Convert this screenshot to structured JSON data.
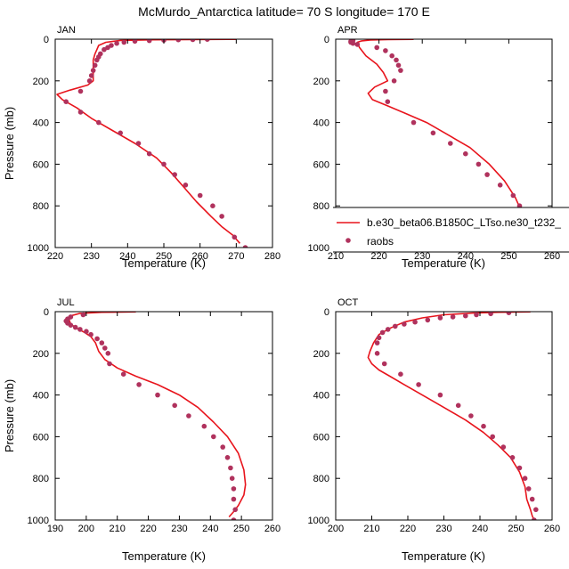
{
  "figure_title": "McMurdo_Antarctica  latitude= 70 S longitude= 170 E",
  "colors": {
    "model": "#e8141c",
    "obs": "#b0325d",
    "axis": "#000000"
  },
  "legend": {
    "entries": [
      {
        "label": "b.e30_beta06.B1850C_LTso.ne30_t232_",
        "style": "line"
      },
      {
        "label": "raobs",
        "style": "marker"
      }
    ]
  },
  "chart_data": [
    {
      "type": "line",
      "title": "JAN",
      "xlabel": "Temperature (K)",
      "ylabel": "Pressure (mb)",
      "xlim": [
        220,
        280
      ],
      "ylim": [
        1000,
        0
      ],
      "xticks": [
        220,
        230,
        240,
        250,
        260,
        270,
        280
      ],
      "yticks": [
        0,
        200,
        400,
        600,
        800,
        1000
      ],
      "series": [
        {
          "name": "b.e30_beta06.B1850C_LTso.ne30_t232_",
          "x": [
            270,
            247,
            238,
            234,
            232,
            231.5,
            231,
            230.5,
            230.5,
            229,
            224,
            220.5,
            222,
            226,
            230,
            236,
            242,
            248,
            252,
            255.5,
            259,
            263,
            266,
            269,
            271
          ],
          "y": [
            1,
            3,
            6,
            15,
            30,
            50,
            70,
            100,
            200,
            220,
            245,
            265,
            290,
            330,
            380,
            440,
            500,
            570,
            640,
            710,
            780,
            850,
            900,
            940,
            980
          ]
        },
        {
          "name": "raobs",
          "x": [
            262,
            258,
            254,
            250,
            246,
            242,
            239,
            237,
            235.5,
            234.5,
            233.5,
            232.5,
            232,
            231.5,
            231,
            230.5,
            230,
            229.5,
            227,
            223,
            227,
            232,
            238,
            243,
            246,
            250,
            253,
            256,
            260,
            263.5,
            266,
            269.5,
            272.5
          ],
          "y": [
            1,
            2,
            3,
            5,
            7,
            10,
            15,
            20,
            30,
            40,
            50,
            70,
            85,
            100,
            125,
            150,
            175,
            200,
            250,
            300,
            350,
            400,
            450,
            500,
            550,
            600,
            650,
            700,
            750,
            800,
            850,
            950,
            1000
          ]
        }
      ]
    },
    {
      "type": "line",
      "title": "APR",
      "xlabel": "Temperature (K)",
      "ylabel": "",
      "xlim": [
        210,
        260
      ],
      "ylim": [
        1000,
        0
      ],
      "xticks": [
        210,
        220,
        230,
        240,
        250,
        260
      ],
      "yticks": [
        0,
        200,
        400,
        600,
        800,
        1000
      ],
      "series": [
        {
          "name": "b.e30_beta06.B1850C_LTso.ne30_t232_",
          "x": [
            228,
            222,
            218,
            216,
            215,
            215.5,
            217,
            219.5,
            221,
            222,
            219,
            217.5,
            218.5,
            222,
            226,
            231,
            236,
            241,
            245.5,
            249,
            251.5,
            252.8,
            253.2,
            252.8,
            252,
            251.5
          ],
          "y": [
            1,
            2,
            4,
            8,
            15,
            40,
            80,
            120,
            160,
            200,
            230,
            260,
            290,
            320,
            355,
            400,
            460,
            520,
            600,
            680,
            760,
            820,
            860,
            900,
            950,
            985
          ]
        },
        {
          "name": "raobs",
          "x": [
            214,
            213.5,
            213.5,
            214,
            215,
            219.5,
            221.5,
            223,
            224,
            224.5,
            225,
            223.5,
            221.5,
            222,
            228,
            232.5,
            236.5,
            240,
            243,
            245,
            248,
            251,
            252.5,
            253.5,
            255,
            256,
            256.5
          ],
          "y": [
            5,
            10,
            15,
            20,
            25,
            40,
            55,
            80,
            100,
            125,
            150,
            200,
            250,
            300,
            400,
            450,
            500,
            550,
            600,
            650,
            700,
            750,
            800,
            850,
            900,
            950,
            1000
          ]
        }
      ]
    },
    {
      "type": "line",
      "title": "JUL",
      "xlabel": "Temperature (K)",
      "ylabel": "Pressure (mb)",
      "xlim": [
        190,
        260
      ],
      "ylim": [
        1000,
        0
      ],
      "xticks": [
        190,
        200,
        210,
        220,
        230,
        240,
        250,
        260
      ],
      "yticks": [
        0,
        200,
        400,
        600,
        800,
        1000
      ],
      "series": [
        {
          "name": "b.e30_beta06.B1850C_LTso.ne30_t232_",
          "x": [
            216,
            205,
            198,
            195,
            194.5,
            195,
            197,
            199.5,
            201.5,
            203,
            204,
            206,
            210,
            216,
            223,
            230,
            236,
            241,
            245.5,
            249,
            250.8,
            251.3,
            250.8,
            249,
            247.5,
            246
          ],
          "y": [
            1,
            3,
            8,
            20,
            40,
            60,
            80,
            100,
            120,
            150,
            190,
            230,
            270,
            310,
            350,
            400,
            460,
            530,
            600,
            680,
            760,
            830,
            880,
            930,
            960,
            985
          ]
        },
        {
          "name": "raobs",
          "x": [
            199,
            195,
            194,
            193.5,
            194,
            195,
            196.5,
            198,
            200,
            201.5,
            203.5,
            205,
            206,
            207,
            207.5,
            212,
            217,
            223,
            228.5,
            233,
            238,
            241,
            244,
            245.5,
            246.5,
            247,
            247.5,
            247.5,
            248,
            247.5
          ],
          "y": [
            15,
            25,
            35,
            45,
            55,
            65,
            75,
            85,
            95,
            110,
            130,
            150,
            175,
            200,
            250,
            300,
            350,
            400,
            450,
            500,
            550,
            600,
            650,
            700,
            750,
            800,
            850,
            900,
            950,
            1000
          ]
        }
      ]
    },
    {
      "type": "line",
      "title": "OCT",
      "xlabel": "Temperature (K)",
      "ylabel": "",
      "xlim": [
        200,
        260
      ],
      "ylim": [
        1000,
        0
      ],
      "xticks": [
        200,
        210,
        220,
        230,
        240,
        250,
        260
      ],
      "yticks": [
        0,
        200,
        400,
        600,
        800,
        1000
      ],
      "series": [
        {
          "name": "b.e30_beta06.B1850C_LTso.ne30_t232_",
          "x": [
            254,
            245,
            238,
            230,
            224,
            219,
            215,
            212,
            210.5,
            209.5,
            209,
            210,
            212,
            215,
            219,
            224,
            230,
            236,
            241,
            245,
            248.5,
            251,
            252.5,
            253,
            254,
            254.5,
            255
          ],
          "y": [
            1,
            3,
            7,
            15,
            30,
            50,
            80,
            110,
            150,
            190,
            220,
            250,
            280,
            310,
            350,
            400,
            460,
            520,
            580,
            640,
            700,
            770,
            840,
            900,
            950,
            980,
            1000
          ]
        },
        {
          "name": "raobs",
          "x": [
            248,
            243,
            239,
            236,
            232.5,
            229,
            225.5,
            222,
            219,
            216.5,
            214.5,
            213,
            212,
            211.5,
            211.5,
            213.5,
            218,
            223,
            229,
            234,
            237.5,
            241,
            243.5,
            246.5,
            249,
            251,
            252.5,
            253.5,
            254.5,
            255.5,
            255
          ],
          "y": [
            5,
            10,
            15,
            20,
            25,
            30,
            40,
            50,
            60,
            70,
            85,
            100,
            125,
            150,
            200,
            250,
            300,
            350,
            400,
            450,
            500,
            550,
            600,
            650,
            700,
            750,
            800,
            850,
            900,
            950,
            1000
          ]
        }
      ]
    }
  ]
}
